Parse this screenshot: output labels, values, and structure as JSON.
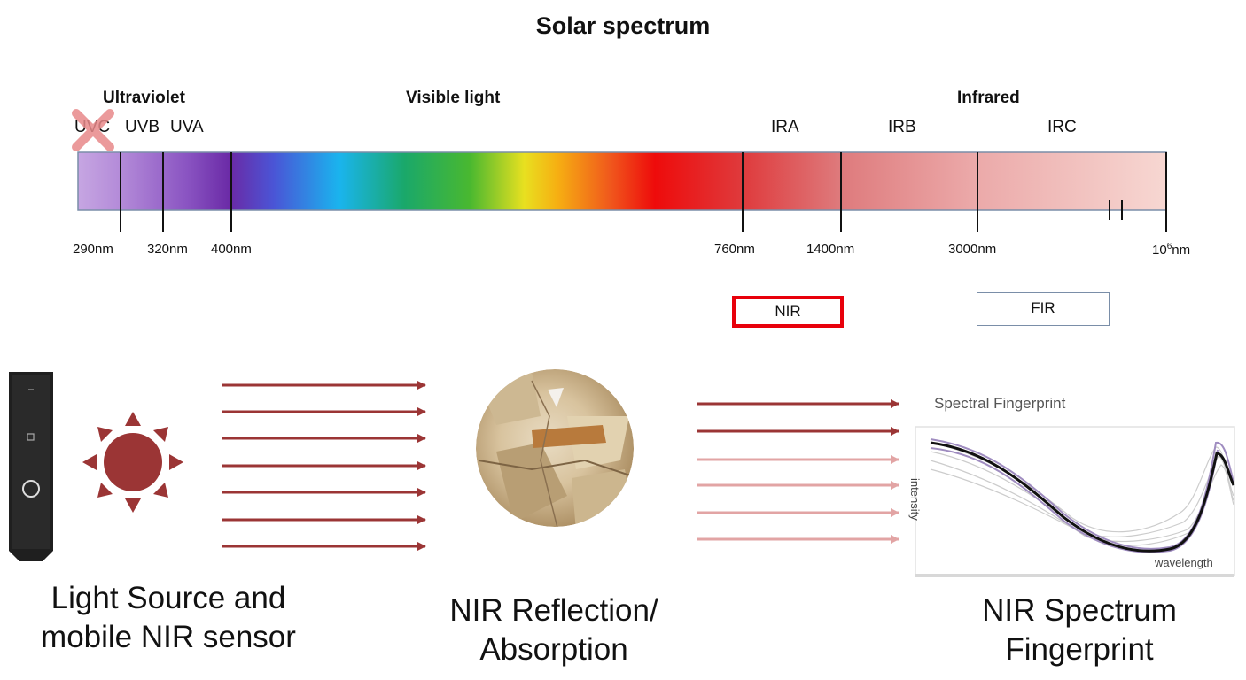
{
  "title": "Solar spectrum",
  "regions": {
    "ultraviolet": "Ultraviolet",
    "visible": "Visible light",
    "infrared": "Infrared"
  },
  "bands": [
    "UVC",
    "UVB",
    "UVA",
    "IRA",
    "IRB",
    "IRC"
  ],
  "ticks": [
    "290nm",
    "320nm",
    "400nm",
    "760nm",
    "1400nm",
    "3000nm"
  ],
  "tick_last": {
    "base": "10",
    "exp": "6",
    "unit": "nm"
  },
  "boxes": {
    "nir": "NIR",
    "fir": "FIR"
  },
  "fingerprint": {
    "title": "Spectral Fingerprint",
    "y_label": "intensity",
    "x_label": "wavelength"
  },
  "captions": {
    "left": [
      "Light Source and",
      "mobile NIR sensor"
    ],
    "middle": [
      "NIR Reflection/",
      "Absorption"
    ],
    "right": [
      "NIR Spectrum",
      "Fingerprint"
    ]
  },
  "colors": {
    "arrow_dark": "#9b3535",
    "arrow_light": "#e2a4a4",
    "sun": "#9b3535",
    "nir_box": "#e8000b"
  }
}
